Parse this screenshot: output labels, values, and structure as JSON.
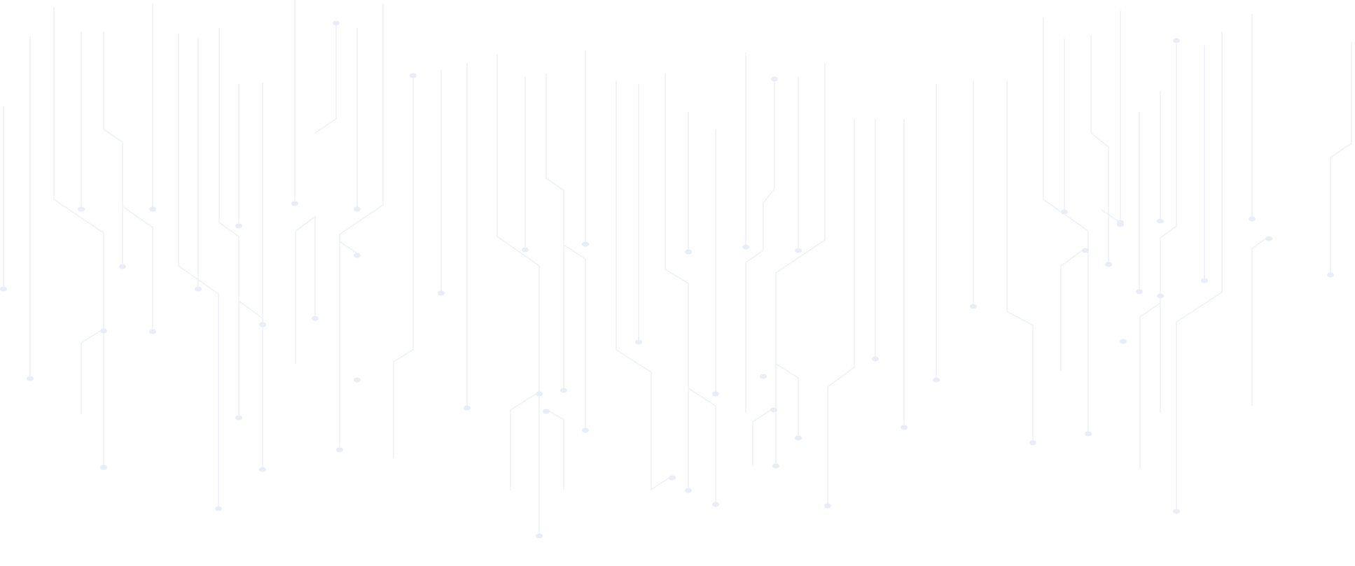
{
  "background": {
    "pattern": "circuit-lines",
    "background_color": "#ffffff",
    "line_color": "#eef1f8",
    "dot_color": "#e9edf6"
  }
}
